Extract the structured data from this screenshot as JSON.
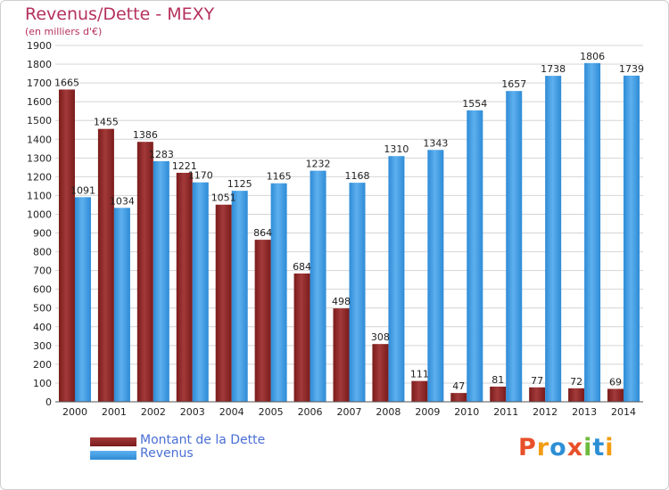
{
  "title": "Revenus/Dette - MEXY",
  "subtitle": "(en milliers d'€)",
  "brand": "Proxiti",
  "colors": {
    "axis_text": "#222222",
    "grid": "#d4d4d4",
    "dette": "#7a1b1b",
    "dette_light": "#a33a3a",
    "revenus": "#2e8bd6",
    "revenus_light": "#5eb0ee",
    "legend_text": "#4a6fd4",
    "logo": [
      "#e8502a",
      "#f39c12",
      "#2d8fd5",
      "#e8502a",
      "#6cbb3c",
      "#2d8fd5",
      "#f39c12"
    ]
  },
  "chart_data": {
    "type": "bar",
    "title": "Revenus/Dette - MEXY",
    "subtitle": "(en milliers d'€)",
    "categories": [
      "2000",
      "2001",
      "2002",
      "2003",
      "2004",
      "2005",
      "2006",
      "2007",
      "2008",
      "2009",
      "2010",
      "2011",
      "2012",
      "2013",
      "2014"
    ],
    "series": [
      {
        "name": "Montant de la Dette",
        "values": [
          1665,
          1455,
          1386,
          1221,
          1051,
          864,
          684,
          498,
          308,
          111,
          47,
          81,
          77,
          72,
          69
        ]
      },
      {
        "name": "Revenus",
        "values": [
          1091,
          1034,
          1283,
          1170,
          1125,
          1165,
          1232,
          1168,
          1310,
          1343,
          1554,
          1657,
          1738,
          1806,
          1739
        ]
      }
    ],
    "data_labels": [
      [
        "1665",
        "1455",
        "1386",
        "1221",
        "1051",
        "864",
        "684",
        "498",
        "308",
        "111",
        "47",
        "81",
        "77",
        "72",
        "69"
      ],
      [
        "1091",
        "1034",
        "1283",
        "1170",
        "1125",
        "1165",
        "1232",
        "1168",
        "1310",
        "1343",
        "1554",
        "1657",
        "1738",
        "1806",
        "1739"
      ]
    ],
    "ylim": [
      0,
      1900
    ],
    "yticks": [
      0,
      100,
      200,
      300,
      400,
      500,
      600,
      700,
      800,
      900,
      1000,
      1100,
      1200,
      1300,
      1400,
      1500,
      1600,
      1700,
      1800,
      1900
    ],
    "grid": true,
    "legend_position": "bottom-left"
  }
}
